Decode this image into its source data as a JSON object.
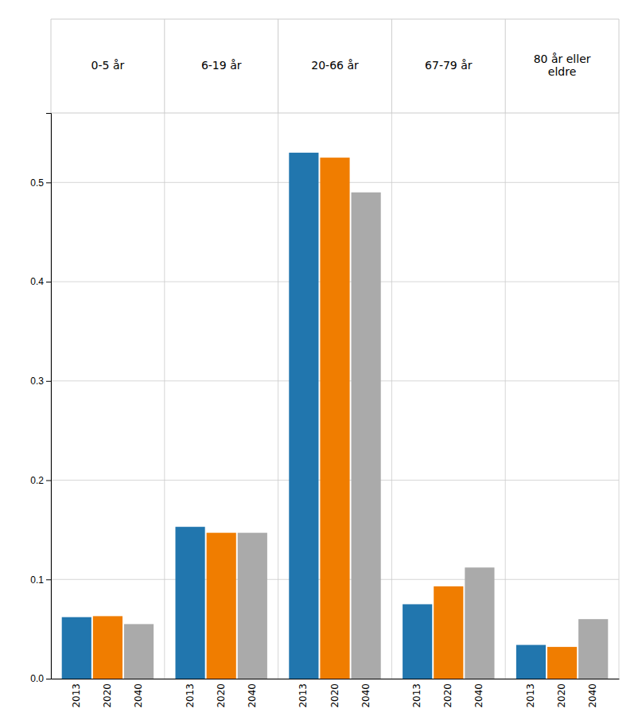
{
  "chart_data": {
    "type": "bar",
    "categories": [
      "0-5 år",
      "6-19 år",
      "20-66 år",
      "67-79 år",
      "80 år eller\neldre"
    ],
    "series": [
      {
        "name": "2013",
        "color": "#2176ae",
        "values": [
          0.062,
          0.153,
          0.53,
          0.075,
          0.034
        ]
      },
      {
        "name": "2020",
        "color": "#f07d00",
        "values": [
          0.063,
          0.147,
          0.525,
          0.093,
          0.032
        ]
      },
      {
        "name": "2040",
        "color": "#aaaaaa",
        "values": [
          0.055,
          0.147,
          0.49,
          0.112,
          0.06
        ]
      }
    ],
    "ylim": [
      0,
      0.57
    ],
    "yticks": [
      {
        "value": 0.0,
        "label": "0.0"
      },
      0.1,
      0.2,
      0.3,
      0.4,
      0.5
    ],
    "grid": true
  }
}
